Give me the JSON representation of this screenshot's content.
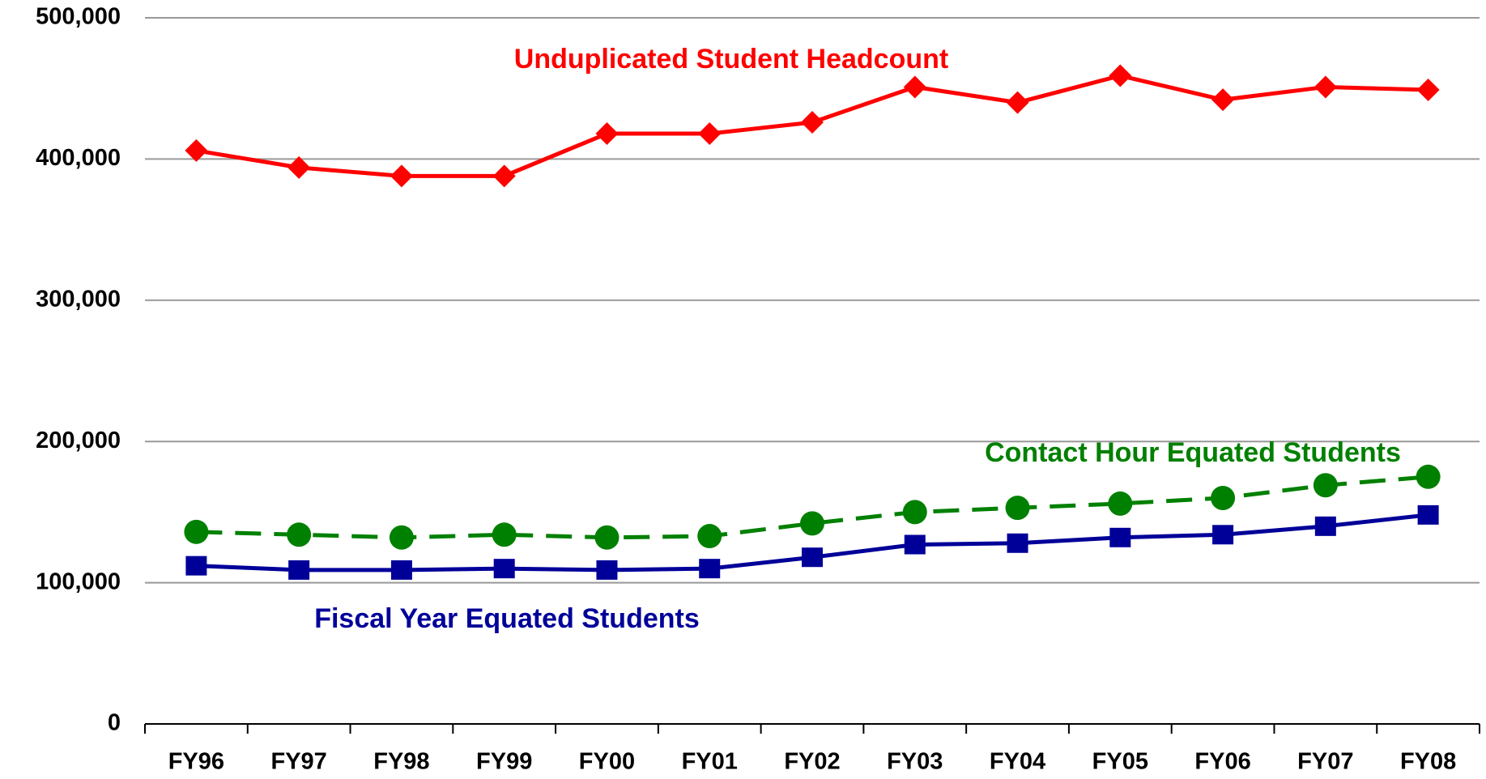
{
  "chart_data": {
    "type": "line",
    "categories": [
      "FY96",
      "FY97",
      "FY98",
      "FY99",
      "FY00",
      "FY01",
      "FY02",
      "FY03",
      "FY04",
      "FY05",
      "FY06",
      "FY07",
      "FY08"
    ],
    "series": [
      {
        "name": "Unduplicated Student Headcount",
        "color": "#ff0000",
        "marker": "diamond",
        "line_style": "solid",
        "values": [
          406000,
          394000,
          388000,
          388000,
          418000,
          418000,
          426000,
          451000,
          440000,
          459000,
          442000,
          451000,
          449000
        ]
      },
      {
        "name": "Contact Hour Equated Students",
        "color": "#008000",
        "marker": "circle",
        "line_style": "dashed",
        "values": [
          136000,
          134000,
          132000,
          134000,
          132000,
          133000,
          142000,
          150000,
          153000,
          156000,
          160000,
          169000,
          175000
        ]
      },
      {
        "name": "Fiscal Year Equated Students",
        "color": "#000099",
        "marker": "square",
        "line_style": "solid",
        "values": [
          112000,
          109000,
          109000,
          110000,
          109000,
          110000,
          118000,
          127000,
          128000,
          132000,
          134000,
          140000,
          148000
        ]
      }
    ],
    "ylim": [
      0,
      500000
    ],
    "yticks": [
      0,
      {
        "value": 100000,
        "label": "100,000"
      },
      {
        "value": 200000,
        "label": "200,000"
      },
      {
        "value": 300000,
        "label": "300,000"
      },
      {
        "value": 400000,
        "label": "400,000"
      },
      {
        "value": 500000,
        "label": "500,000"
      }
    ],
    "grid": true
  }
}
